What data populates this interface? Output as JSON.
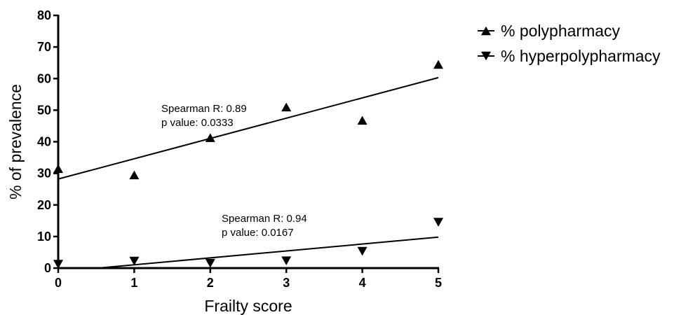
{
  "chart_data": {
    "type": "scatter",
    "xlabel": "Frailty score",
    "ylabel": "% of prevalence",
    "xlim": [
      0,
      5
    ],
    "ylim": [
      0,
      80
    ],
    "x_ticks": [
      0,
      1,
      2,
      3,
      4,
      5
    ],
    "y_ticks": [
      0,
      10,
      20,
      30,
      40,
      50,
      60,
      70,
      80
    ],
    "grid": false,
    "legend_position": "top-right",
    "series": [
      {
        "name": "% polypharmacy",
        "marker": "triangle-up",
        "color": "#000000",
        "x": [
          0,
          1,
          2,
          3,
          4,
          5
        ],
        "y": [
          31.5,
          29.5,
          41.3,
          51,
          46.8,
          64.5
        ],
        "trendline": {
          "x": [
            0,
            5
          ],
          "y": [
            28.2,
            60.3
          ]
        },
        "annotation": [
          "Spearman R: 0.89",
          "p value: 0.0333"
        ]
      },
      {
        "name": "% hyperpolypharmacy",
        "marker": "triangle-down",
        "color": "#000000",
        "x": [
          0,
          1,
          2,
          3,
          4,
          5
        ],
        "y": [
          1.2,
          2.2,
          1.5,
          2.3,
          5.3,
          14.5
        ],
        "trendline": {
          "x": [
            0.52,
            5
          ],
          "y": [
            0,
            9.8
          ]
        },
        "annotation": [
          "Spearman R: 0.94",
          "p value: 0.0167"
        ]
      }
    ]
  }
}
